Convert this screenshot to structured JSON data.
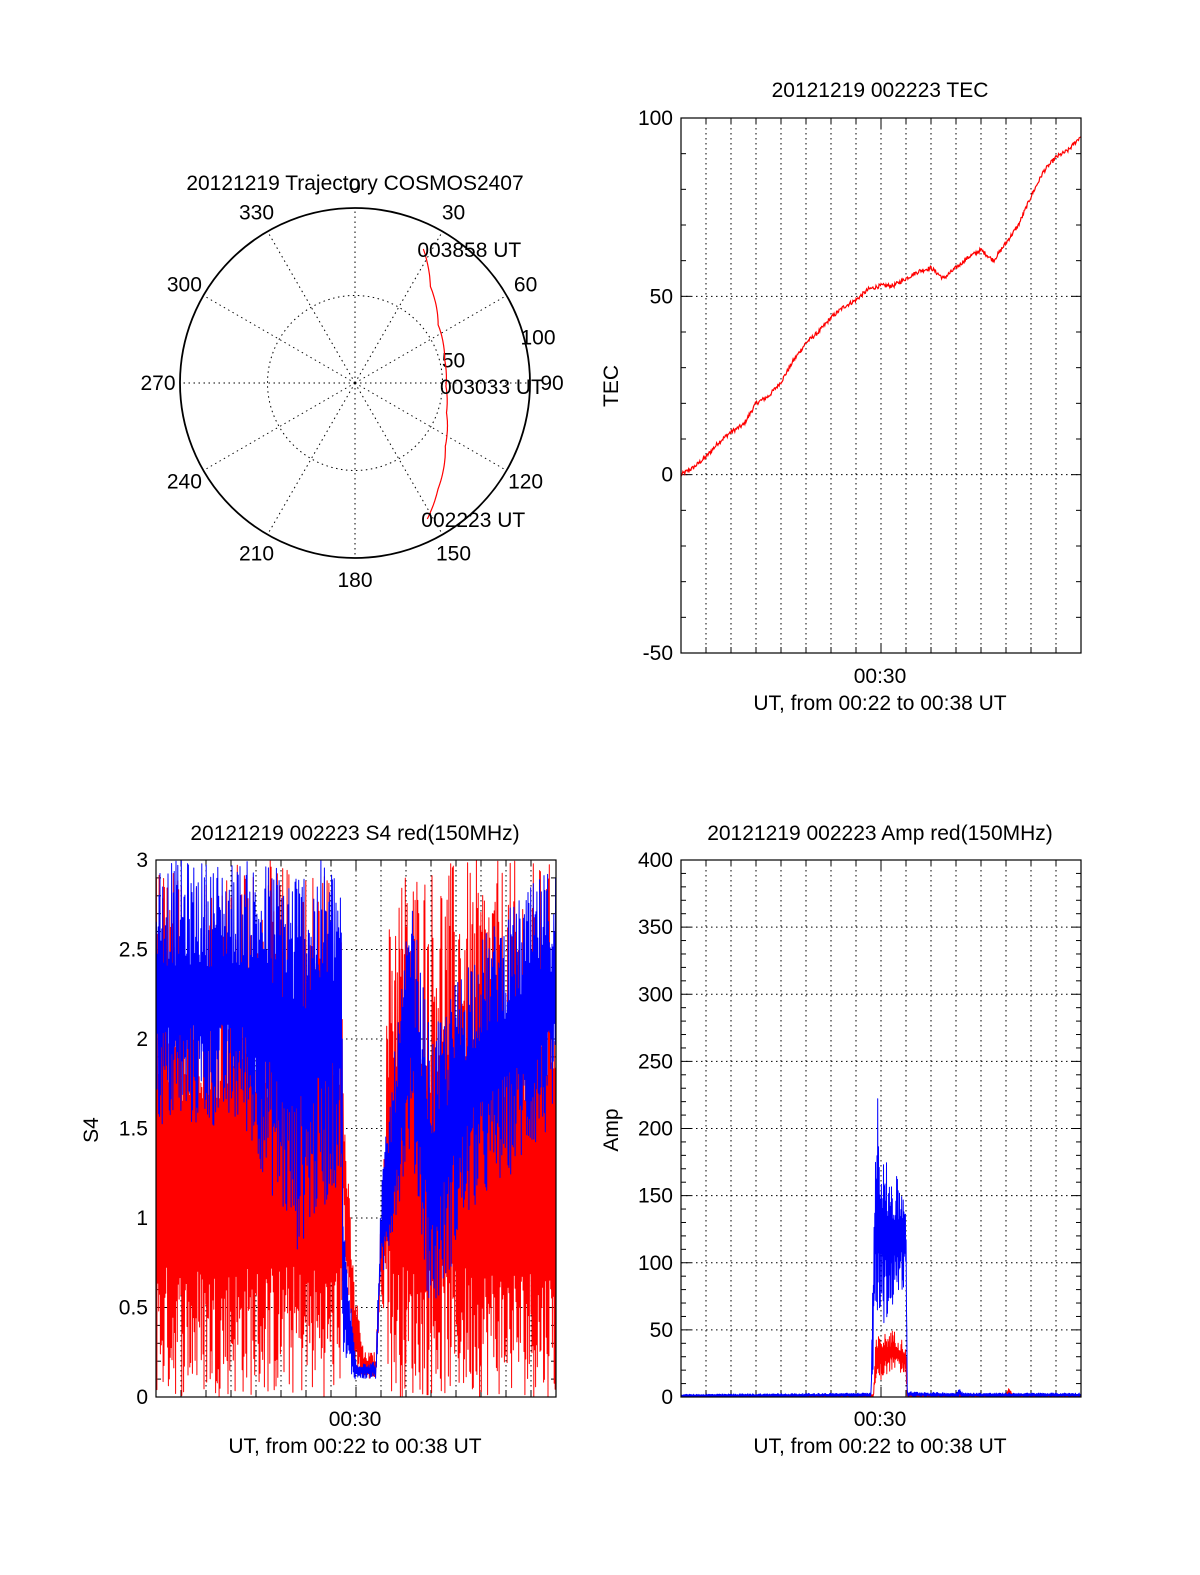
{
  "chart_data": [
    {
      "id": "polar",
      "type": "polar-trajectory",
      "title": "20121219 Trajectory COSMOS2407",
      "angle_labels": [
        "0",
        "30",
        "60",
        "90",
        "120",
        "150",
        "180",
        "210",
        "240",
        "270",
        "300",
        "330"
      ],
      "radial_labels": [
        "50",
        "100"
      ],
      "radial_max": 100,
      "colors": {
        "track": "#ff0000"
      },
      "track": [
        {
          "az": 27,
          "r": 86
        },
        {
          "az": 38,
          "r": 70
        },
        {
          "az": 55,
          "r": 58
        },
        {
          "az": 75,
          "r": 53
        },
        {
          "az": 92,
          "r": 52
        },
        {
          "az": 108,
          "r": 55
        },
        {
          "az": 125,
          "r": 63
        },
        {
          "az": 142,
          "r": 77
        },
        {
          "az": 152,
          "r": 88
        }
      ],
      "annotations": [
        {
          "text": "003858 UT",
          "az": 27,
          "r": 86
        },
        {
          "text": "003033 UT",
          "az": 92,
          "r": 52
        },
        {
          "text": "002223 UT",
          "az": 152,
          "r": 88
        }
      ]
    },
    {
      "id": "tec",
      "type": "line",
      "title": "20121219 002223 TEC",
      "ylabel": "TEC",
      "xlabel": "UT, from 00:22 to 00:38 UT",
      "x_tick_label": "00:30",
      "ylim": [
        -50,
        100
      ],
      "yticks": [
        -50,
        0,
        50,
        100
      ],
      "xrange_min": [
        0,
        16
      ],
      "grid": true,
      "colors": {
        "line": "#ff0000"
      },
      "series": [
        {
          "x": [
            0,
            0.5,
            1,
            1.5,
            2,
            2.5,
            3,
            3.5,
            4,
            4.5,
            5,
            5.5,
            6,
            6.5,
            7,
            7.5,
            8,
            8.5,
            9,
            9.5,
            10,
            10.5,
            11,
            11.5,
            12,
            12.5,
            13,
            13.5,
            14,
            14.5,
            15,
            15.5,
            16
          ],
          "y": [
            0,
            2,
            5,
            9,
            12,
            14,
            20,
            22,
            26,
            32,
            37,
            40,
            44,
            47,
            49,
            52,
            53,
            53,
            55,
            57,
            58,
            55,
            58,
            61,
            63,
            60,
            65,
            70,
            78,
            85,
            89,
            91,
            95
          ]
        }
      ]
    },
    {
      "id": "s4",
      "type": "line",
      "title": "20121219 002223 S4 red(150MHz)",
      "ylabel": "S4",
      "xlabel": "UT, from 00:22 to 00:38 UT",
      "x_tick_label": "00:30",
      "ylim": [
        0,
        3
      ],
      "yticks": [
        "0",
        "0.5",
        "1",
        "1.5",
        "2",
        "2.5",
        "3"
      ],
      "xrange_min": [
        0,
        16
      ],
      "grid": true,
      "colors": {
        "red": "#ff0000",
        "blue": "#0000ff"
      },
      "series": [
        {
          "color": "red",
          "profile": [
            {
              "x": 0,
              "lo": 0,
              "hi": 3
            },
            {
              "x": 7.4,
              "lo": 0,
              "hi": 3
            },
            {
              "x": 7.5,
              "lo": 0.9,
              "hi": 1.7
            },
            {
              "x": 7.9,
              "lo": 0.15,
              "hi": 0.7
            },
            {
              "x": 8.3,
              "lo": 0.1,
              "hi": 0.25
            },
            {
              "x": 8.8,
              "lo": 0.1,
              "hi": 0.25
            },
            {
              "x": 9.0,
              "lo": 0.6,
              "hi": 1.0
            },
            {
              "x": 9.4,
              "lo": 0,
              "hi": 3
            },
            {
              "x": 16,
              "lo": 0,
              "hi": 3
            }
          ]
        },
        {
          "color": "blue",
          "profile": [
            {
              "x": 0,
              "lo": 1.5,
              "hi": 3
            },
            {
              "x": 3.5,
              "lo": 1.5,
              "hi": 3
            },
            {
              "x": 5.6,
              "lo": 0.8,
              "hi": 3
            },
            {
              "x": 7.4,
              "lo": 1.2,
              "hi": 3
            },
            {
              "x": 7.5,
              "lo": 0.1,
              "hi": 1.0
            },
            {
              "x": 8.0,
              "lo": 0.1,
              "hi": 0.2
            },
            {
              "x": 8.8,
              "lo": 0.1,
              "hi": 0.2
            },
            {
              "x": 9.0,
              "lo": 0.6,
              "hi": 1.2
            },
            {
              "x": 10.2,
              "lo": 1.4,
              "hi": 2.8
            },
            {
              "x": 11.0,
              "lo": 0.4,
              "hi": 2.0
            },
            {
              "x": 12.5,
              "lo": 1.0,
              "hi": 2.5
            },
            {
              "x": 16,
              "lo": 1.5,
              "hi": 3
            }
          ]
        }
      ]
    },
    {
      "id": "amp",
      "type": "line",
      "title": "20121219 002223 Amp red(150MHz)",
      "ylabel": "Amp",
      "xlabel": "UT, from 00:22 to 00:38 UT",
      "x_tick_label": "00:30",
      "ylim": [
        0,
        400
      ],
      "yticks": [
        0,
        50,
        100,
        150,
        200,
        250,
        300,
        350,
        400
      ],
      "xrange_min": [
        0,
        16
      ],
      "grid": true,
      "colors": {
        "red": "#ff0000",
        "blue": "#0000ff"
      },
      "series": [
        {
          "color": "red",
          "profile": [
            {
              "x": 0,
              "lo": 0,
              "hi": 1
            },
            {
              "x": 7.7,
              "lo": 0,
              "hi": 2
            },
            {
              "x": 7.8,
              "lo": 10,
              "hi": 45
            },
            {
              "x": 8.5,
              "lo": 20,
              "hi": 50
            },
            {
              "x": 9.0,
              "lo": 15,
              "hi": 40
            },
            {
              "x": 9.05,
              "lo": 0,
              "hi": 2
            },
            {
              "x": 13.0,
              "lo": 0,
              "hi": 2
            },
            {
              "x": 13.1,
              "lo": 0,
              "hi": 7
            },
            {
              "x": 13.3,
              "lo": 0,
              "hi": 2
            },
            {
              "x": 16,
              "lo": 0,
              "hi": 1
            }
          ]
        },
        {
          "color": "blue",
          "profile": [
            {
              "x": 0,
              "lo": 0,
              "hi": 2
            },
            {
              "x": 7.6,
              "lo": 0,
              "hi": 3
            },
            {
              "x": 7.8,
              "lo": 50,
              "hi": 235
            },
            {
              "x": 8.2,
              "lo": 55,
              "hi": 175
            },
            {
              "x": 8.8,
              "lo": 80,
              "hi": 160
            },
            {
              "x": 9.0,
              "lo": 80,
              "hi": 150
            },
            {
              "x": 9.05,
              "lo": 0,
              "hi": 4
            },
            {
              "x": 11.0,
              "lo": 0,
              "hi": 3
            },
            {
              "x": 11.1,
              "lo": 0,
              "hi": 7
            },
            {
              "x": 11.3,
              "lo": 0,
              "hi": 3
            },
            {
              "x": 16,
              "lo": 0,
              "hi": 3
            }
          ]
        }
      ]
    }
  ]
}
